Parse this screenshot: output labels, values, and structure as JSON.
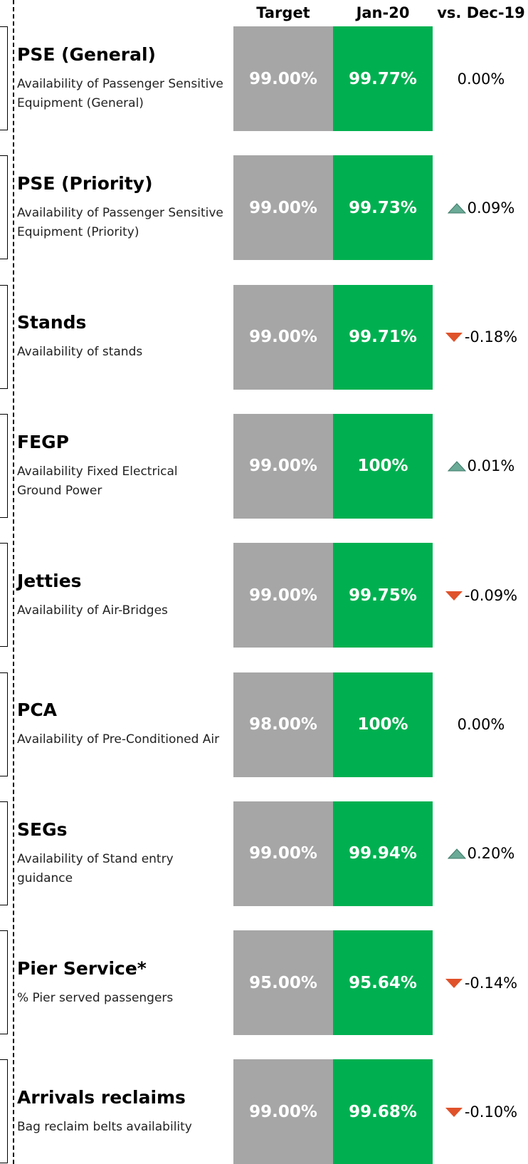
{
  "header": {
    "columns": [
      "Target",
      "Jan-20",
      "vs. Dec-19"
    ]
  },
  "rows": [
    {
      "title": "PSE (General)",
      "description": "Availability of Passenger Sensitive Equipment (General)",
      "target": "99.00%",
      "actual": "99.77%",
      "change": "0.00%"
    },
    {
      "title": "PSE (Priority)",
      "description": "Availability of Passenger Sensitive Equipment (Priority)",
      "target": "99.00%",
      "actual": "99.73%",
      "change": "0.09%"
    },
    {
      "title": "Stands",
      "description": "Availability of stands",
      "target": "99.00%",
      "actual": "99.71%",
      "change": "-0.18%"
    },
    {
      "title": "FEGP",
      "description": "Availability Fixed Electrical Ground Power",
      "target": "99.00%",
      "actual": "100%",
      "change": "0.01%"
    },
    {
      "title": "Jetties",
      "description": "Availability of Air-Bridges",
      "target": "99.00%",
      "actual": "99.75%",
      "change": "-0.09%"
    },
    {
      "title": "PCA",
      "description": "Availability of Pre-Conditioned Air",
      "target": "98.00%",
      "actual": "100%",
      "change": "0.00%"
    },
    {
      "title": "SEGs",
      "description": "Availability of Stand entry guidance",
      "target": "99.00%",
      "actual": "99.94%",
      "change": "0.20%"
    },
    {
      "title": "Pier Service*",
      "description": "% Pier served passengers",
      "target": "95.00%",
      "actual": "95.64%",
      "change": "-0.14%"
    },
    {
      "title": "Arrivals reclaims",
      "description": "Bag reclaim belts availability",
      "target": "99.00%",
      "actual": "99.68%",
      "change": "-0.10%"
    }
  ]
}
